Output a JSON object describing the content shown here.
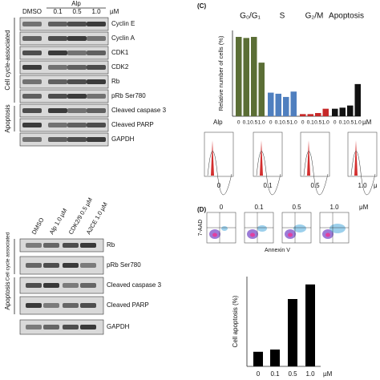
{
  "panel_a": {
    "treatment": "Alp",
    "doses": [
      "DMSO",
      "0.1",
      "0.5",
      "1.0"
    ],
    "unit": "µM",
    "proteins": [
      "Cyclin E",
      "Cyclin A",
      "CDK1",
      "CDK2",
      "Rb",
      "pRb Ser780",
      "Cleaved caspase 3",
      "Cleaved PARP",
      "GAPDH"
    ],
    "groups": [
      "Cell cycle-associated",
      "Apoptosis"
    ]
  },
  "chart_data": [
    {
      "type": "bar",
      "panel": "(C)",
      "y_label": "Relative number of cells (%)",
      "categories": [
        "0",
        "0.1",
        "0.5",
        "1.0"
      ],
      "x_prefix": "Alp",
      "x_unit": "µM",
      "series": [
        {
          "name": "G₀/G₁",
          "color": "#5b6e35",
          "values": [
            74,
            73,
            74,
            50
          ]
        },
        {
          "name": "S",
          "color": "#4f7fbf",
          "values": [
            22,
            21,
            18,
            23
          ]
        },
        {
          "name": "G₂/M",
          "color": "#c62828",
          "values": [
            2,
            2,
            3,
            7
          ]
        },
        {
          "name": "Apoptosis",
          "color": "#111111",
          "values": [
            7,
            8,
            10,
            30
          ]
        }
      ],
      "ylim": [
        0,
        80
      ]
    },
    {
      "type": "bar",
      "y_label": "Cell apoptosis (%)",
      "categories": [
        "0",
        "0.1",
        "0.5",
        "1.0"
      ],
      "x_unit": "µM",
      "values": [
        13,
        15,
        60,
        73
      ],
      "color": "#000000",
      "ylim": [
        0,
        80
      ]
    }
  ],
  "histograms": {
    "doses": [
      "0",
      "0.1",
      "0.5",
      "1.0"
    ],
    "unit": "μ"
  },
  "panel_b": {
    "doses": [
      "DMSO",
      "Alp 1.0 µM",
      "CDK2/9 0.5 µM",
      "A2CE 1.0 µM"
    ],
    "proteins": [
      "Rb",
      "pRb Ser780",
      "Cleaved caspase 3",
      "Cleaved PARP",
      "GAPDH"
    ],
    "groups": [
      "Cell cycle associated",
      "Apoptosis"
    ]
  },
  "panel_d": {
    "panel": "(D)",
    "doses": [
      "0",
      "0.1",
      "0.5",
      "1.0"
    ],
    "unit": "μM",
    "y_label": "7-AAD",
    "x_label": "Annexin V"
  }
}
